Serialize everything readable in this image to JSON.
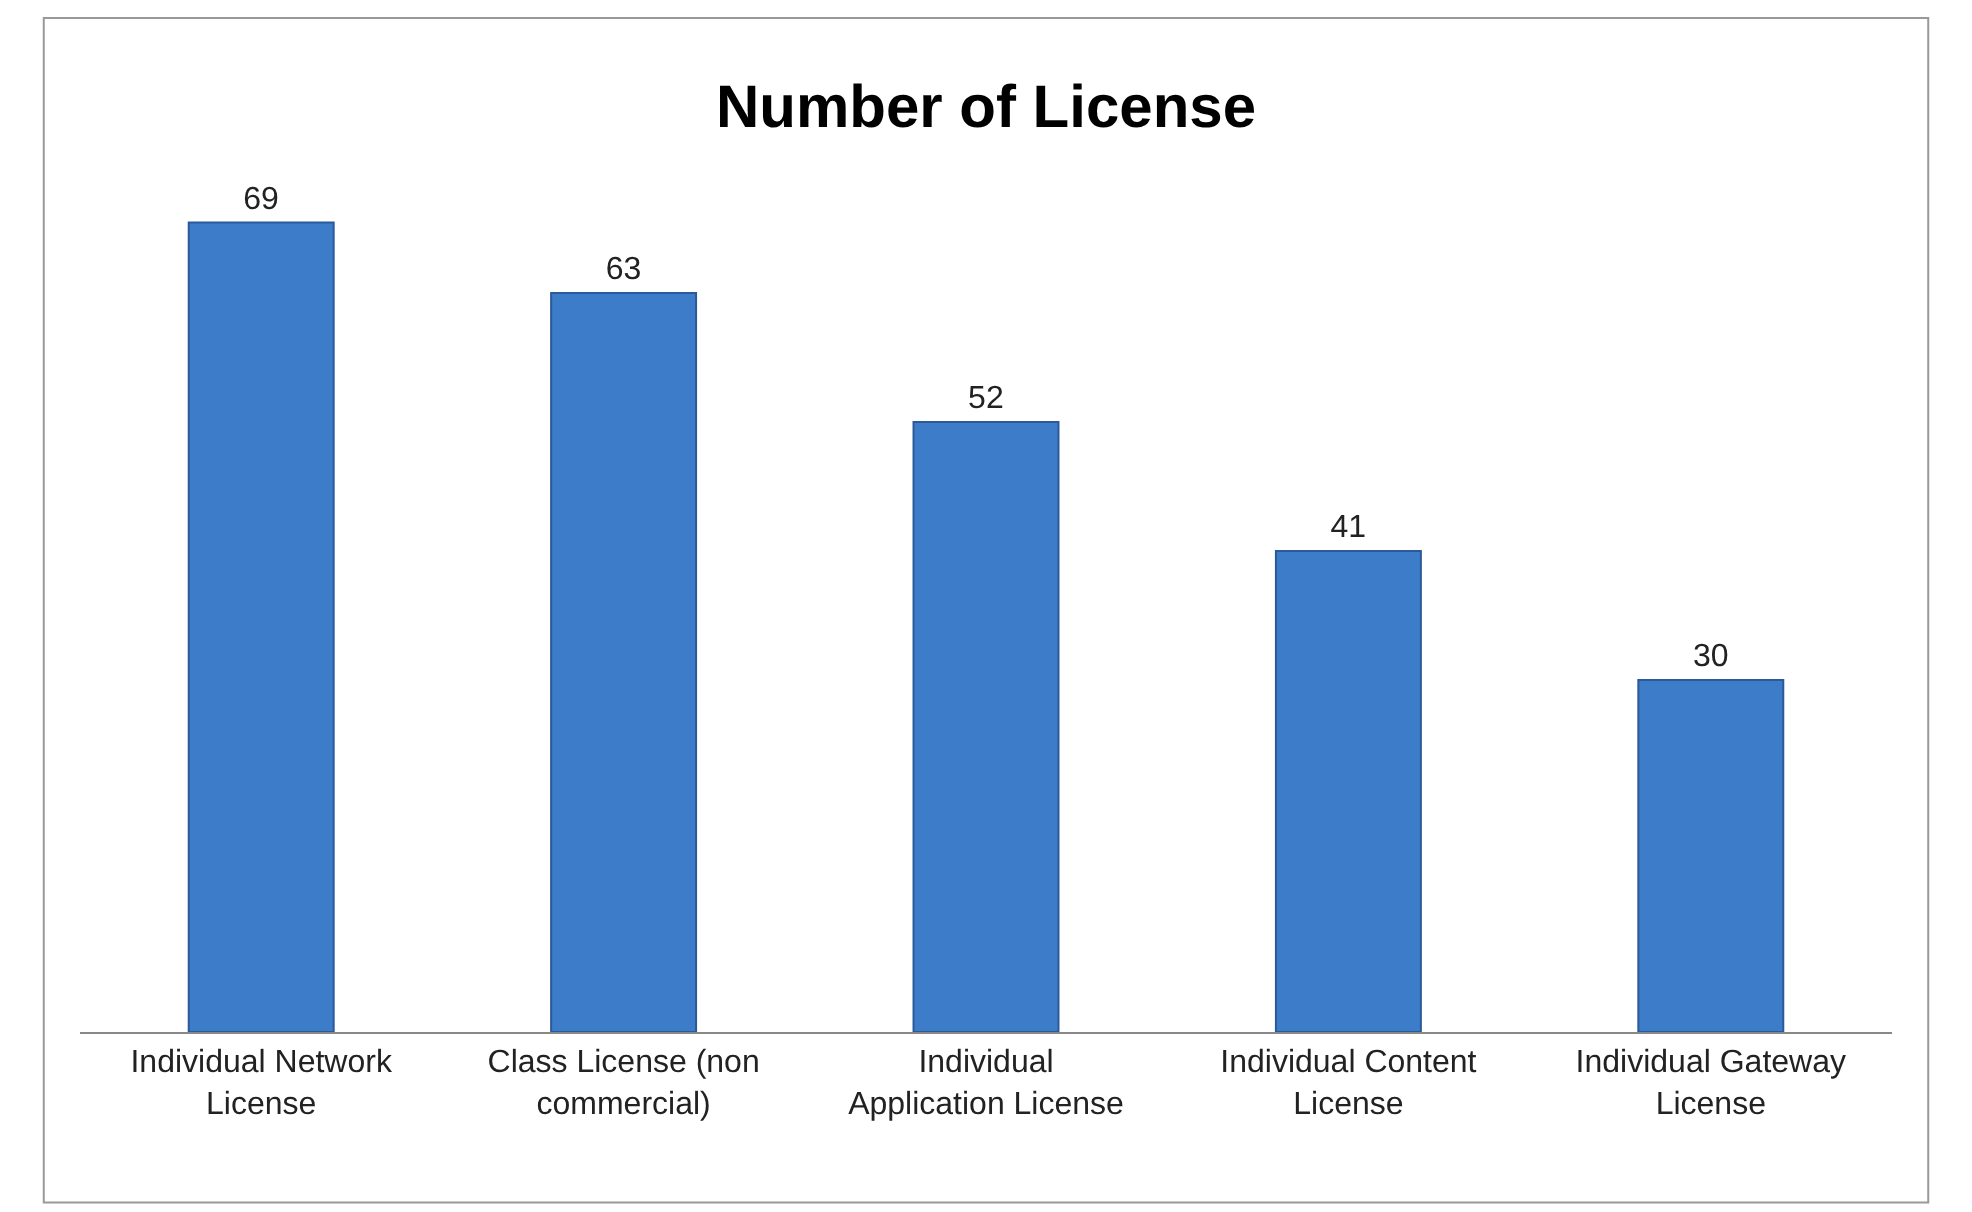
{
  "chart_data": {
    "type": "bar",
    "title": "Number of License",
    "categories": [
      "Individual Network License",
      "Class License (non commercial)",
      "Individual Application License",
      "Individual Content License",
      "Individual Gateway License"
    ],
    "values": [
      69,
      63,
      52,
      41,
      30
    ],
    "color": "#3d7cc9",
    "data_labels": true
  }
}
